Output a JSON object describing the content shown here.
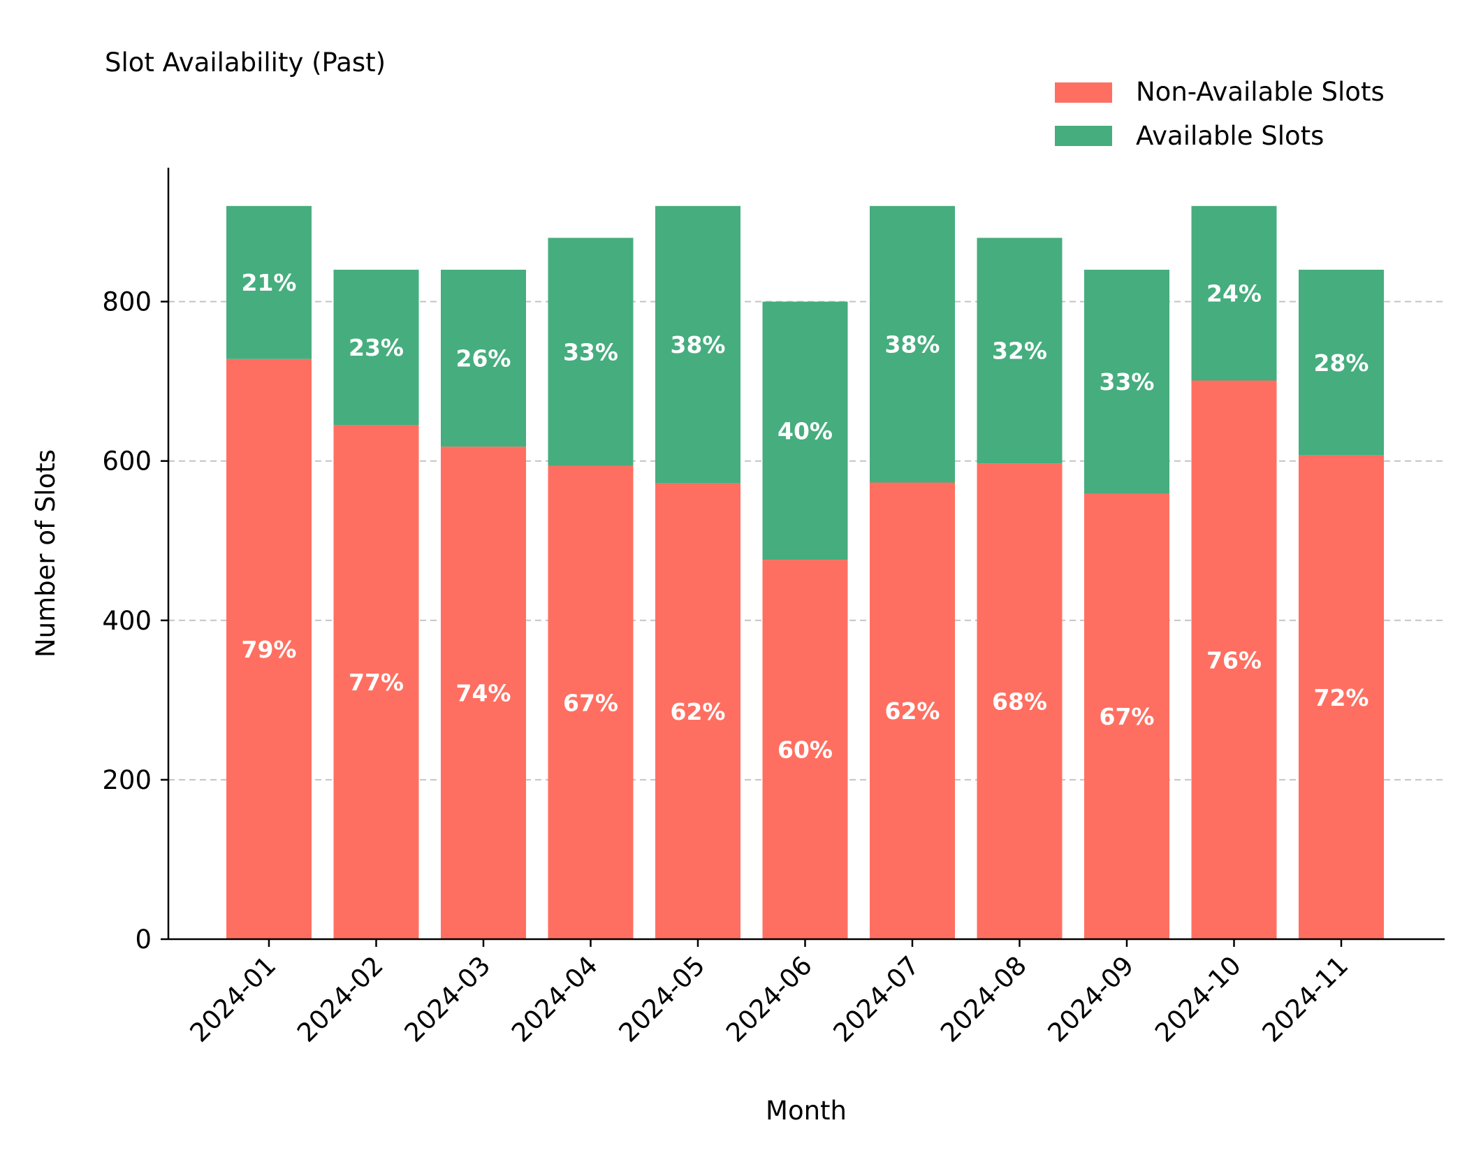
{
  "chart_data": {
    "type": "bar",
    "stacked": true,
    "title": "Slot Availability (Past)",
    "xlabel": "Month",
    "ylabel": "Number of Slots",
    "ylim": [
      0,
      968
    ],
    "yticks": [
      0,
      200,
      400,
      600,
      800
    ],
    "grid": "y-dashed",
    "legend_position": "top-right",
    "categories": [
      "2024-01",
      "2024-02",
      "2024-03",
      "2024-04",
      "2024-05",
      "2024-06",
      "2024-07",
      "2024-08",
      "2024-09",
      "2024-10",
      "2024-11"
    ],
    "series": [
      {
        "name": "Non-Available Slots",
        "color": "#ff6f61",
        "values": [
          728,
          645,
          618,
          594,
          572,
          476,
          573,
          597,
          559,
          701,
          607
        ],
        "percent_labels": [
          "79%",
          "77%",
          "74%",
          "67%",
          "62%",
          "60%",
          "62%",
          "68%",
          "67%",
          "76%",
          "72%"
        ]
      },
      {
        "name": "Available Slots",
        "color": "#46ad7e",
        "values": [
          192,
          195,
          222,
          286,
          348,
          324,
          347,
          283,
          281,
          219,
          233
        ],
        "percent_labels": [
          "21%",
          "23%",
          "26%",
          "33%",
          "38%",
          "40%",
          "38%",
          "32%",
          "33%",
          "24%",
          "28%"
        ]
      }
    ]
  }
}
